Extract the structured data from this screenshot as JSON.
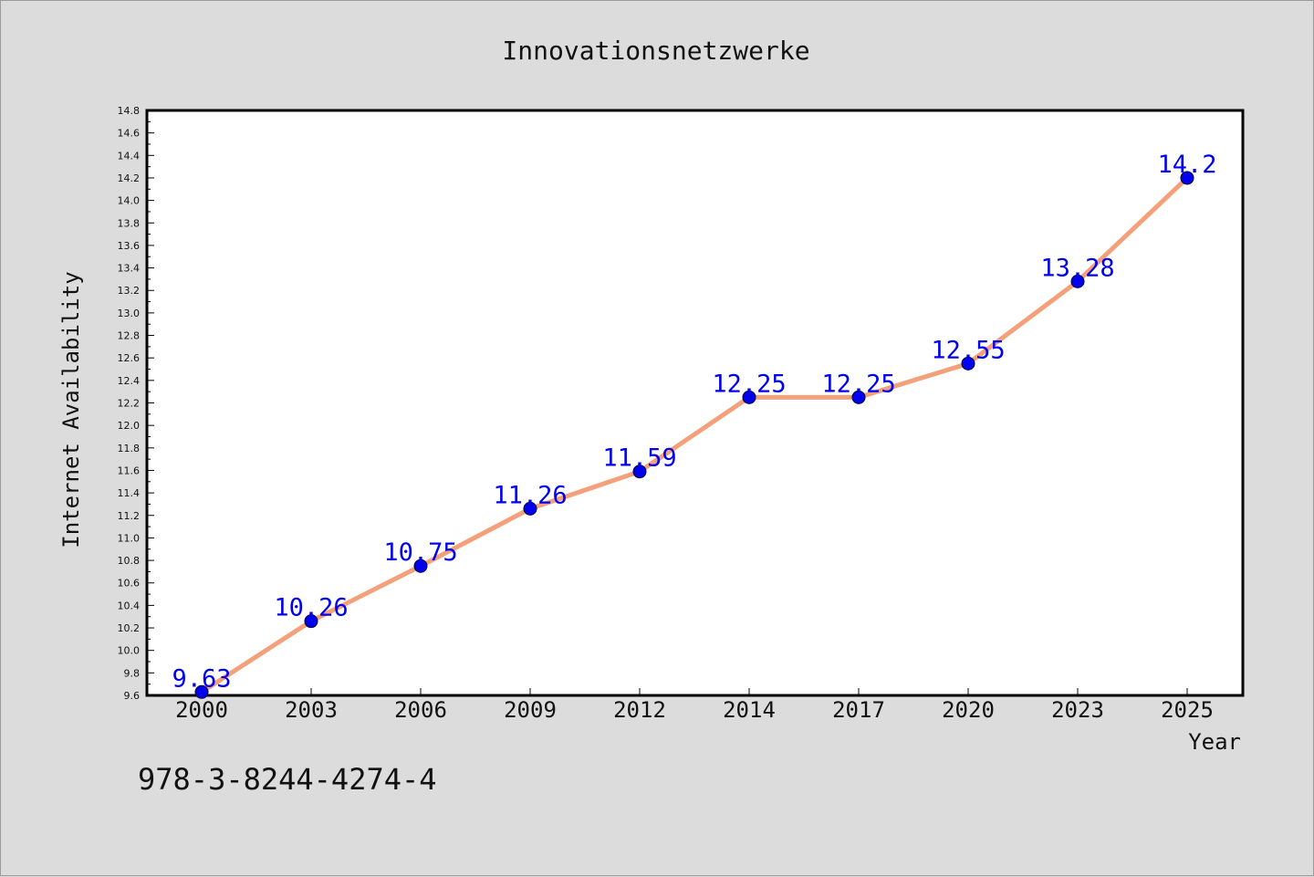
{
  "chart_data": {
    "type": "line",
    "title": "Innovationsnetzwerke",
    "xlabel": "Year",
    "ylabel": "Internet Availability",
    "categories": [
      "2000",
      "2003",
      "2006",
      "2009",
      "2012",
      "2014",
      "2017",
      "2020",
      "2023",
      "2025"
    ],
    "series": [
      {
        "values": [
          9.63,
          10.26,
          10.75,
          11.26,
          11.59,
          12.25,
          12.25,
          12.55,
          13.28,
          14.2
        ],
        "labels": [
          "9.63",
          "10.26",
          "10.75",
          "11.26",
          "11.59",
          "12.25",
          "12.25",
          "12.55",
          "13.28",
          "14.2"
        ],
        "line_color": "#f4a07a",
        "marker_color": "#0000ee"
      }
    ],
    "ylim": [
      9.6,
      14.8
    ],
    "yticks": [
      "9.6",
      "9.8",
      "10.0",
      "10.2",
      "10.4",
      "10.6",
      "10.8",
      "11.0",
      "11.2",
      "11.4",
      "11.6",
      "11.8",
      "12.0",
      "12.2",
      "12.4",
      "12.6",
      "12.8",
      "13.0",
      "13.2",
      "13.4",
      "13.6",
      "13.8",
      "14.0",
      "14.2",
      "14.4",
      "14.6",
      "14.8"
    ],
    "grid": false,
    "legend": "none"
  },
  "footer": {
    "isbn": "978-3-8244-4274-4"
  }
}
